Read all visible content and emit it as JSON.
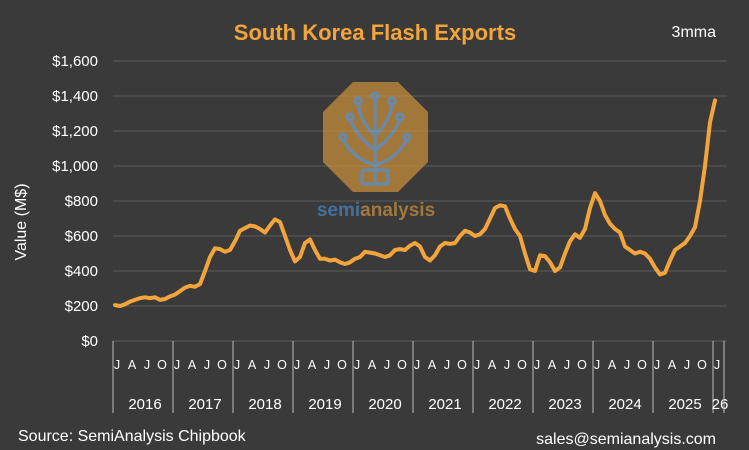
{
  "chart_data": {
    "type": "line",
    "title": "South Korea Flash Exports",
    "note": "3mma",
    "xlabel": "",
    "ylabel": "Value (M$)",
    "ylim": [
      0,
      1600
    ],
    "yticks": [
      0,
      200,
      400,
      600,
      800,
      1000,
      1200,
      1400,
      1600
    ],
    "ytick_labels": [
      "$0",
      "$200",
      "$400",
      "$600",
      "$800",
      "$1,000",
      "$1,200",
      "$1,400",
      "$1,600"
    ],
    "grid": true,
    "year_labels": [
      "2016",
      "2017",
      "2018",
      "2019",
      "2020",
      "2021",
      "2022",
      "2023",
      "2024",
      "2025",
      "26"
    ],
    "month_tick_labels": [
      "J",
      "A",
      "J",
      "O"
    ],
    "months_in_data": 121,
    "start": "2016-01",
    "series": [
      {
        "name": "South Korea Flash Exports (3mma)",
        "color": "#f3a53c",
        "values": [
          205,
          200,
          210,
          225,
          235,
          245,
          250,
          245,
          250,
          235,
          240,
          255,
          265,
          285,
          305,
          315,
          310,
          325,
          400,
          480,
          530,
          525,
          510,
          520,
          570,
          630,
          645,
          660,
          655,
          640,
          620,
          660,
          695,
          680,
          600,
          520,
          455,
          480,
          560,
          580,
          520,
          470,
          470,
          460,
          465,
          450,
          440,
          450,
          470,
          480,
          510,
          505,
          500,
          490,
          480,
          490,
          520,
          525,
          520,
          545,
          560,
          540,
          480,
          460,
          490,
          540,
          560,
          555,
          560,
          600,
          630,
          620,
          600,
          610,
          640,
          700,
          760,
          775,
          770,
          700,
          640,
          600,
          500,
          410,
          400,
          490,
          485,
          450,
          400,
          420,
          500,
          570,
          610,
          590,
          640,
          760,
          845,
          800,
          720,
          670,
          640,
          620,
          540,
          520,
          500,
          510,
          500,
          470,
          420,
          380,
          390,
          460,
          520,
          540,
          560,
          600,
          650,
          800,
          1000,
          1250,
          1375
        ]
      }
    ]
  },
  "footer": {
    "source": "Source: SemiAnalysis Chipbook",
    "contact": "sales@semianalysis.com"
  },
  "watermark": {
    "brand_part1": "semi",
    "brand_part2": "analysis",
    "brand_color1": "#4a86c5",
    "brand_color2": "#c9913a"
  }
}
